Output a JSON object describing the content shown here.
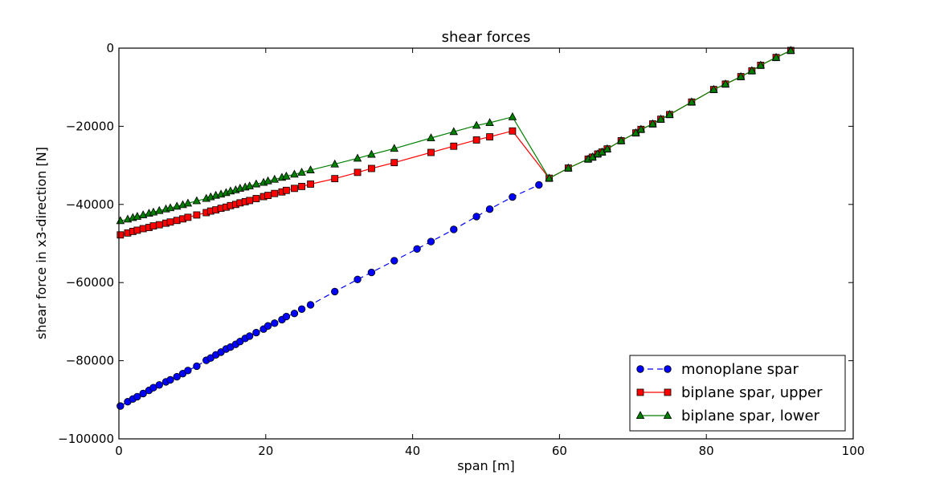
{
  "chart_data": {
    "type": "line",
    "title": "shear forces",
    "xlabel": "span [m]",
    "ylabel": "shear force in x3-direction [N]",
    "xlim": [
      0,
      100
    ],
    "ylim": [
      -100000,
      0
    ],
    "xticks": [
      0,
      20,
      40,
      60,
      80,
      100
    ],
    "yticks": [
      0,
      -20000,
      -40000,
      -60000,
      -80000,
      -100000
    ],
    "xtick_labels": [
      "0",
      "20",
      "40",
      "60",
      "80",
      "100"
    ],
    "ytick_labels": [
      "0",
      "−20000",
      "−40000",
      "−60000",
      "−80000",
      "−100000"
    ],
    "grid": false,
    "legend_position": "lower-right",
    "series": [
      {
        "name": "monoplane spar",
        "color": "#0000ff",
        "marker": "circle",
        "line_style": "dashed",
        "x": [
          0.2,
          1.2,
          1.9,
          2.5,
          3.3,
          4.1,
          4.7,
          5.5,
          6.4,
          7.0,
          7.9,
          8.7,
          9.4,
          10.6,
          11.9,
          12.5,
          13.2,
          13.9,
          14.6,
          15.2,
          15.9,
          16.5,
          17.2,
          17.8,
          18.7,
          19.7,
          20.3,
          21.2,
          22.2,
          22.8,
          23.9,
          24.9,
          26.1,
          29.4,
          32.5,
          34.4,
          37.5,
          40.6,
          42.5,
          45.6,
          48.7,
          50.5,
          53.6,
          57.2
        ],
        "y": [
          -91600,
          -90500,
          -89800,
          -89200,
          -88400,
          -87600,
          -86900,
          -86200,
          -85400,
          -84900,
          -84100,
          -83300,
          -82500,
          -81400,
          -79900,
          -79300,
          -78500,
          -77800,
          -77000,
          -76500,
          -75800,
          -75100,
          -74300,
          -73700,
          -72800,
          -71900,
          -71100,
          -70400,
          -69500,
          -68700,
          -67900,
          -66800,
          -65700,
          -62300,
          -59200,
          -57400,
          -54400,
          -51400,
          -49500,
          -46400,
          -43100,
          -41200,
          -38100,
          -35000
        ]
      },
      {
        "name": "biplane spar, upper",
        "color": "#ff0000",
        "marker": "square",
        "line_style": "solid",
        "x": [
          0.2,
          1.2,
          1.9,
          2.5,
          3.3,
          4.1,
          4.7,
          5.5,
          6.4,
          7.0,
          7.9,
          8.7,
          9.4,
          10.6,
          11.9,
          12.5,
          13.2,
          13.9,
          14.6,
          15.2,
          15.9,
          16.5,
          17.2,
          17.8,
          18.7,
          19.7,
          20.3,
          21.2,
          22.2,
          22.8,
          23.9,
          24.9,
          26.1,
          29.4,
          32.5,
          34.4,
          37.5,
          42.5,
          45.6,
          48.7,
          50.5,
          53.6,
          58.6,
          61.2,
          63.9,
          64.5,
          65.2,
          65.8,
          66.5,
          68.4,
          70.4,
          71.1,
          72.7,
          73.8,
          75.0,
          78.0,
          81.0,
          82.6,
          84.7,
          86.2,
          87.4,
          89.5,
          91.5
        ],
        "y": [
          -47800,
          -47300,
          -46900,
          -46600,
          -46200,
          -45900,
          -45500,
          -45200,
          -44800,
          -44500,
          -44100,
          -43700,
          -43300,
          -42700,
          -42100,
          -41700,
          -41400,
          -41000,
          -40700,
          -40300,
          -40000,
          -39600,
          -39300,
          -39000,
          -38500,
          -38000,
          -37700,
          -37200,
          -36800,
          -36400,
          -35900,
          -35400,
          -34800,
          -33400,
          -31800,
          -30800,
          -29300,
          -26700,
          -25100,
          -23500,
          -22700,
          -21200,
          -33300,
          -30700,
          -28400,
          -27900,
          -27100,
          -26600,
          -25800,
          -23700,
          -21700,
          -20800,
          -19400,
          -18200,
          -17000,
          -13800,
          -10600,
          -9200,
          -7300,
          -5800,
          -4400,
          -2400,
          -600
        ]
      },
      {
        "name": "biplane spar, lower",
        "color": "#008000",
        "marker": "triangle",
        "line_style": "solid",
        "x": [
          0.2,
          1.2,
          1.9,
          2.5,
          3.3,
          4.1,
          4.7,
          5.5,
          6.4,
          7.0,
          7.9,
          8.7,
          9.4,
          10.6,
          11.9,
          12.5,
          13.2,
          13.9,
          14.6,
          15.2,
          15.9,
          16.5,
          17.2,
          17.8,
          18.7,
          19.7,
          20.3,
          21.2,
          22.2,
          22.8,
          23.9,
          24.9,
          26.1,
          29.4,
          32.5,
          34.4,
          37.5,
          42.5,
          45.6,
          48.7,
          50.5,
          53.6,
          58.6,
          61.2,
          63.9,
          64.5,
          65.2,
          65.8,
          66.5,
          68.4,
          70.4,
          71.1,
          72.7,
          73.8,
          75.0,
          78.0,
          81.0,
          82.6,
          84.7,
          86.2,
          87.4,
          89.5,
          91.5
        ],
        "y": [
          -44200,
          -43800,
          -43400,
          -43100,
          -42700,
          -42300,
          -42000,
          -41600,
          -41200,
          -40900,
          -40500,
          -40100,
          -39700,
          -39100,
          -38500,
          -38100,
          -37700,
          -37400,
          -37000,
          -36600,
          -36300,
          -35900,
          -35600,
          -35300,
          -34800,
          -34400,
          -34000,
          -33600,
          -33100,
          -32800,
          -32300,
          -31800,
          -31200,
          -29700,
          -28200,
          -27200,
          -25700,
          -23000,
          -21400,
          -19800,
          -19100,
          -17600,
          -33300,
          -30700,
          -28400,
          -27900,
          -27100,
          -26600,
          -25800,
          -23700,
          -21700,
          -20800,
          -19400,
          -18200,
          -17000,
          -13800,
          -10600,
          -9200,
          -7300,
          -5800,
          -4400,
          -2400,
          -600
        ]
      }
    ]
  }
}
